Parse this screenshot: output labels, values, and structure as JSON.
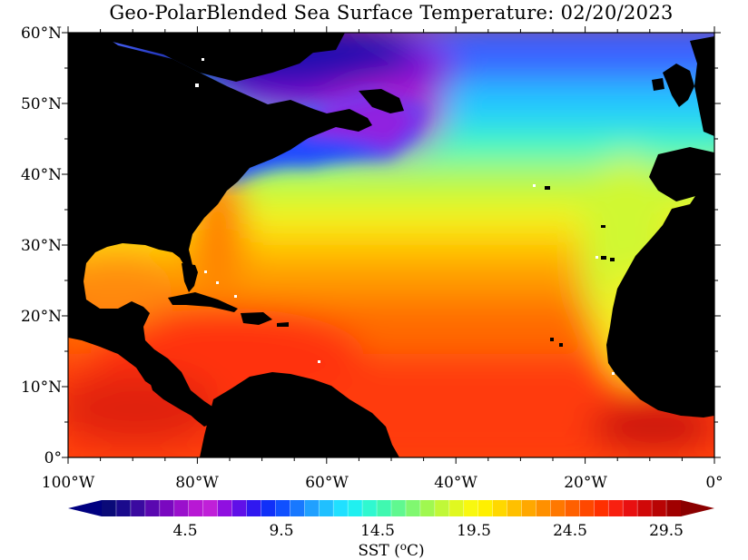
{
  "title": "Geo-PolarBlended Sea Surface Temperature: 02/20/2023",
  "lat_ticks": [
    "0°",
    "10°N",
    "20°N",
    "30°N",
    "40°N",
    "50°N",
    "60°N"
  ],
  "lon_ticks": [
    "100°W",
    "80°W",
    "60°W",
    "40°W",
    "20°W",
    "0°"
  ],
  "colorbar": {
    "label": "SST (",
    "label_super": "o",
    "label_unit": "C)",
    "tick_labels": [
      "4.5",
      "9.5",
      "14.5",
      "19.5",
      "24.5",
      "29.5"
    ],
    "colors": [
      "#0a0a78",
      "#1a0a8c",
      "#3a0aa0",
      "#5a08b0",
      "#7a08c0",
      "#9a10cc",
      "#b818d4",
      "#c020d8",
      "#9010e0",
      "#6010e8",
      "#3018f0",
      "#1030f8",
      "#1050ff",
      "#1878ff",
      "#20a0ff",
      "#20c0ff",
      "#20e0ff",
      "#20f0f0",
      "#30f8d0",
      "#40f8b0",
      "#60f890",
      "#80f870",
      "#a0f850",
      "#c0f838",
      "#e0f820",
      "#f8f810",
      "#fff000",
      "#ffd800",
      "#ffc000",
      "#ffa800",
      "#ff9000",
      "#ff7800",
      "#ff6000",
      "#ff4800",
      "#ff3000",
      "#f82010",
      "#e81010",
      "#d00808",
      "#b80404",
      "#a00000"
    ],
    "end_colors": {
      "low": "#000080",
      "high": "#8b0000"
    }
  },
  "palette": {
    "land": "#000000",
    "missing": "#ffffff"
  }
}
